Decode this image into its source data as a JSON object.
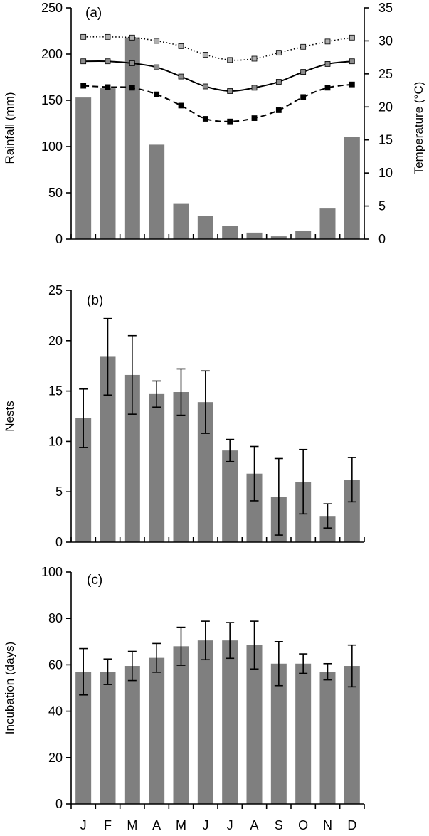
{
  "chart_data": [
    {
      "panel": "(a)",
      "type": "bar",
      "categories": [
        "J",
        "F",
        "M",
        "A",
        "M",
        "J",
        "J",
        "A",
        "S",
        "O",
        "N",
        "D"
      ],
      "ylabel": "Rainfall (mm)",
      "ylim": [
        0,
        250
      ],
      "yticks": [
        0,
        50,
        100,
        150,
        200,
        250
      ],
      "values": [
        153,
        163,
        218,
        102,
        38,
        25,
        14,
        7,
        3,
        9,
        33,
        110
      ],
      "bar_color": "#7f7f7f",
      "y2label": "Temperature (°C)",
      "y2lim": [
        0,
        35
      ],
      "y2ticks": [
        0,
        5,
        10,
        15,
        20,
        25,
        30,
        35
      ],
      "temperature_series": [
        {
          "style": "dotted",
          "marker_color": "#b0b0b0",
          "values": [
            30.6,
            30.6,
            30.5,
            30.0,
            29.2,
            27.9,
            27.1,
            27.3,
            28.2,
            29.1,
            29.9,
            30.5
          ]
        },
        {
          "style": "solid",
          "marker_color": "#8c8c8c",
          "values": [
            26.9,
            26.9,
            26.6,
            26.0,
            24.6,
            23.1,
            22.4,
            22.9,
            23.8,
            25.3,
            26.5,
            26.9
          ]
        },
        {
          "style": "dashed",
          "marker_color": "#000000",
          "values": [
            23.2,
            23.0,
            22.9,
            21.9,
            20.2,
            18.2,
            17.8,
            18.3,
            19.5,
            21.5,
            22.9,
            23.4
          ]
        }
      ]
    },
    {
      "panel": "(b)",
      "type": "bar",
      "categories": [
        "J",
        "F",
        "M",
        "A",
        "M",
        "J",
        "J",
        "A",
        "S",
        "O",
        "N",
        "D"
      ],
      "ylabel": "Nests",
      "ylim": [
        0,
        25
      ],
      "yticks": [
        0,
        5,
        10,
        15,
        20,
        25
      ],
      "values": [
        12.3,
        18.4,
        16.6,
        14.7,
        14.9,
        13.9,
        9.1,
        6.8,
        4.5,
        6.0,
        2.6,
        6.2
      ],
      "errors": [
        2.9,
        3.8,
        3.9,
        1.3,
        2.3,
        3.1,
        1.1,
        2.7,
        3.8,
        3.2,
        1.2,
        2.2
      ],
      "bar_color": "#7f7f7f"
    },
    {
      "panel": "(c)",
      "type": "bar",
      "categories": [
        "J",
        "F",
        "M",
        "A",
        "M",
        "J",
        "J",
        "A",
        "S",
        "O",
        "N",
        "D"
      ],
      "ylabel": "Incubation (days)",
      "ylim": [
        0,
        100
      ],
      "yticks": [
        0,
        20,
        40,
        60,
        80,
        100
      ],
      "values": [
        57,
        57,
        59.5,
        63,
        68,
        70.5,
        70.5,
        68.5,
        60.5,
        60.5,
        57,
        59.5
      ],
      "errors": [
        10,
        5.5,
        6.3,
        6.2,
        8.2,
        8.3,
        7.7,
        10.3,
        9.5,
        4.2,
        3.5,
        9.0
      ],
      "bar_color": "#7f7f7f"
    }
  ]
}
